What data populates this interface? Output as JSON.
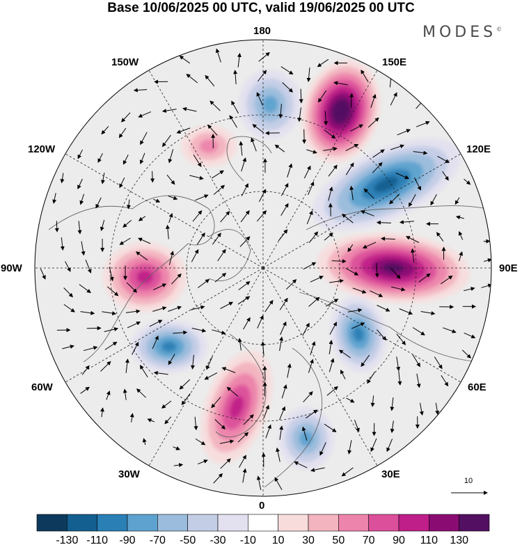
{
  "header": {
    "title": "Base 10/06/2025 00 UTC, valid 19/06/2025 00 UTC",
    "brand": "MODES"
  },
  "map": {
    "projection": "north-polar-stereographic",
    "longitude_labels": {
      "top": "180",
      "bottom": "0",
      "left": "90W",
      "right": "90E",
      "upper_left": "150W",
      "upper_right": "150E",
      "mid_left_upper": "120W",
      "mid_right_upper": "120E",
      "mid_left_lower": "60W",
      "mid_right_lower": "60E",
      "lower_left": "30W",
      "lower_right": "30E"
    },
    "vector_reference": {
      "value": "10"
    },
    "anomaly_centers": [
      {
        "id": "pos-150E",
        "sign": "positive",
        "level": 130
      },
      {
        "id": "neg-120E",
        "sign": "negative",
        "level": -90
      },
      {
        "id": "pos-90E",
        "sign": "positive",
        "level": 110
      },
      {
        "id": "neg-170W",
        "sign": "negative",
        "level": -50
      },
      {
        "id": "pos-90W",
        "sign": "positive",
        "level": 70
      },
      {
        "id": "neg-65W",
        "sign": "negative",
        "level": -70
      },
      {
        "id": "pos-20W",
        "sign": "positive",
        "level": 70
      },
      {
        "id": "neg-50E",
        "sign": "negative",
        "level": -70
      },
      {
        "id": "pos-115W",
        "sign": "positive",
        "level": 30
      },
      {
        "id": "neg-35E",
        "sign": "negative",
        "level": -50
      }
    ]
  },
  "colorbar": {
    "colors": [
      "#0d3a5c",
      "#135f8f",
      "#2a7fb5",
      "#5ea2cf",
      "#9bbcdc",
      "#c4cde6",
      "#e3e0ef",
      "#ffffff",
      "#f8dcdc",
      "#f3b4c0",
      "#ec84ab",
      "#dc4f9a",
      "#bf1f88",
      "#8a0c73",
      "#531062"
    ],
    "tick_labels": [
      "-130",
      "-110",
      "-90",
      "-70",
      "-50",
      "-30",
      "-10",
      "10",
      "30",
      "50",
      "70",
      "90",
      "110",
      "130"
    ]
  }
}
